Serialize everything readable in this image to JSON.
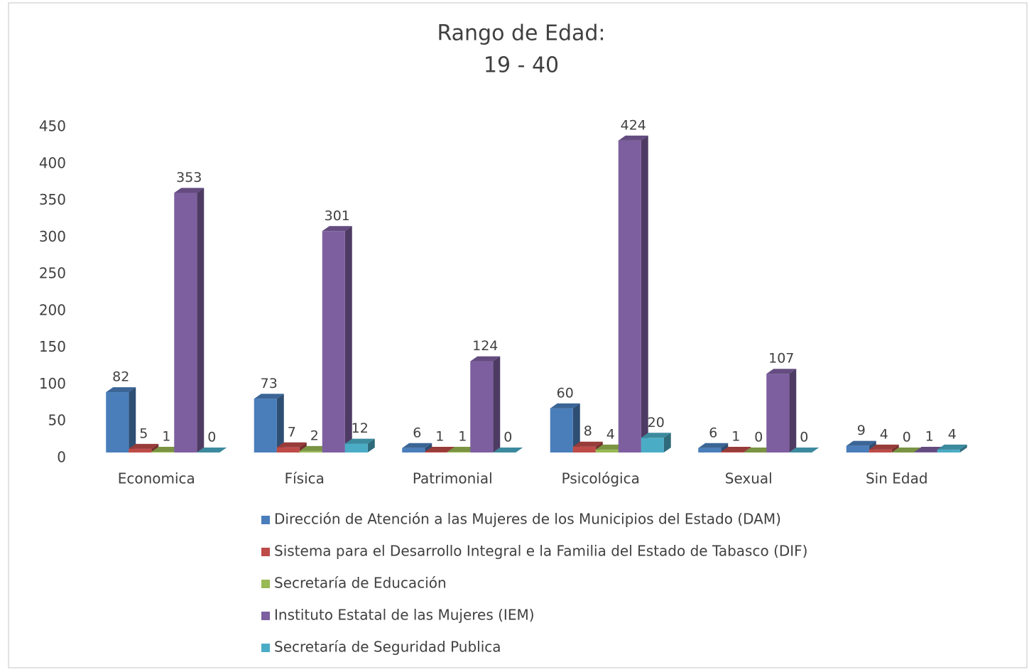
{
  "chart_data": {
    "type": "bar3d",
    "title": "Rango de Edad:",
    "subtitle": "19 - 40",
    "categories": [
      "Economica",
      "Física",
      "Patrimonial",
      "Psicológica",
      "Sexual",
      "Sin Edad"
    ],
    "series": [
      {
        "name": "Dirección de Atención a las Mujeres de los Municipios del Estado (DAM)",
        "color": "#4a7ebb",
        "values": [
          82,
          73,
          6,
          60,
          6,
          9
        ]
      },
      {
        "name": "Sistema para el Desarrollo Integral e la Familia del Estado de Tabasco (DIF)",
        "color": "#be4b48",
        "values": [
          5,
          7,
          1,
          8,
          1,
          4
        ]
      },
      {
        "name": "Secretaría de Educación",
        "color": "#98b954",
        "values": [
          1,
          2,
          1,
          4,
          0,
          0
        ]
      },
      {
        "name": "Instituto Estatal de las Mujeres (IEM)",
        "color": "#7d5fa0",
        "values": [
          353,
          301,
          124,
          424,
          107,
          1
        ]
      },
      {
        "name": "Secretaría de Seguridad Publica",
        "color": "#4bacc6",
        "values": [
          0,
          12,
          0,
          20,
          0,
          4
        ]
      }
    ],
    "ylim": [
      0,
      450
    ],
    "yticks": [
      0,
      50,
      100,
      150,
      200,
      250,
      300,
      350,
      400,
      450
    ],
    "grid": false,
    "legend": "bottom"
  }
}
